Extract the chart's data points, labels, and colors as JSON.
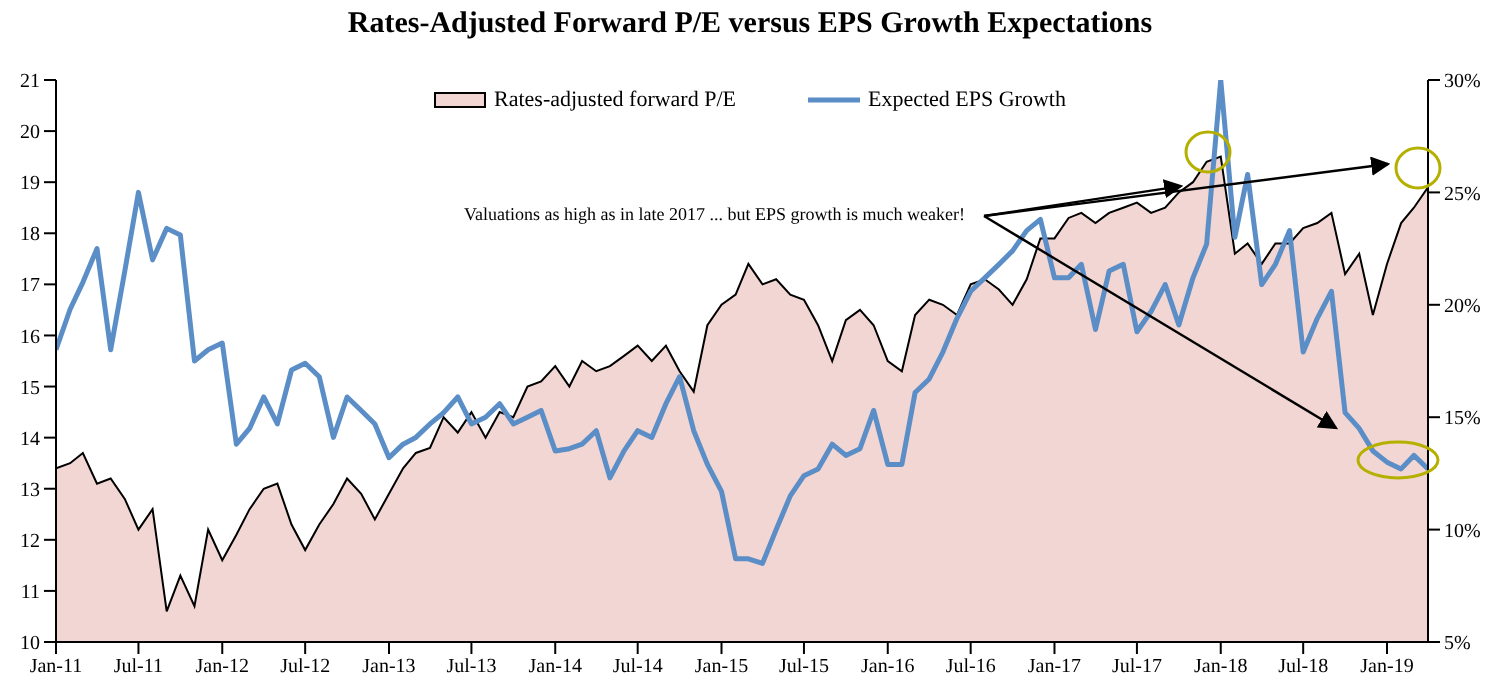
{
  "chart_data": {
    "type": "area",
    "title": "Rates-Adjusted Forward P/E versus EPS Growth Expectations",
    "x": [
      "2011-01",
      "2011-02",
      "2011-03",
      "2011-04",
      "2011-05",
      "2011-06",
      "2011-07",
      "2011-08",
      "2011-09",
      "2011-10",
      "2011-11",
      "2011-12",
      "2012-01",
      "2012-02",
      "2012-03",
      "2012-04",
      "2012-05",
      "2012-06",
      "2012-07",
      "2012-08",
      "2012-09",
      "2012-10",
      "2012-11",
      "2012-12",
      "2013-01",
      "2013-02",
      "2013-03",
      "2013-04",
      "2013-05",
      "2013-06",
      "2013-07",
      "2013-08",
      "2013-09",
      "2013-10",
      "2013-11",
      "2013-12",
      "2014-01",
      "2014-02",
      "2014-03",
      "2014-04",
      "2014-05",
      "2014-06",
      "2014-07",
      "2014-08",
      "2014-09",
      "2014-10",
      "2014-11",
      "2014-12",
      "2015-01",
      "2015-02",
      "2015-03",
      "2015-04",
      "2015-05",
      "2015-06",
      "2015-07",
      "2015-08",
      "2015-09",
      "2015-10",
      "2015-11",
      "2015-12",
      "2016-01",
      "2016-02",
      "2016-03",
      "2016-04",
      "2016-05",
      "2016-06",
      "2016-07",
      "2016-08",
      "2016-09",
      "2016-10",
      "2016-11",
      "2016-12",
      "2017-01",
      "2017-02",
      "2017-03",
      "2017-04",
      "2017-05",
      "2017-06",
      "2017-07",
      "2017-08",
      "2017-09",
      "2017-10",
      "2017-11",
      "2017-12",
      "2018-01",
      "2018-02",
      "2018-03",
      "2018-04",
      "2018-05",
      "2018-06",
      "2018-07",
      "2018-08",
      "2018-09",
      "2018-10",
      "2018-11",
      "2018-12",
      "2019-01",
      "2019-02",
      "2019-03",
      "2019-04"
    ],
    "series": [
      {
        "name": "Rates-adjusted forward P/E",
        "color": "#f2d6d3",
        "values": [
          13.4,
          13.5,
          13.7,
          13.1,
          13.2,
          12.8,
          12.2,
          12.6,
          10.6,
          11.3,
          10.7,
          12.2,
          11.6,
          12.1,
          12.6,
          13.0,
          13.1,
          12.3,
          11.8,
          12.3,
          12.7,
          13.2,
          12.9,
          12.4,
          12.9,
          13.4,
          13.7,
          13.8,
          14.4,
          14.1,
          14.5,
          14.0,
          14.5,
          14.4,
          15.0,
          15.1,
          15.4,
          15.0,
          15.5,
          15.3,
          15.4,
          15.6,
          15.8,
          15.5,
          15.8,
          15.3,
          14.9,
          16.2,
          16.6,
          16.8,
          17.4,
          17.0,
          17.1,
          16.8,
          16.7,
          16.2,
          15.5,
          16.3,
          16.5,
          16.2,
          15.5,
          15.3,
          16.4,
          16.7,
          16.6,
          16.4,
          17.0,
          17.1,
          16.9,
          16.6,
          17.1,
          17.9,
          17.9,
          18.3,
          18.4,
          18.2,
          18.4,
          18.5,
          18.6,
          18.4,
          18.5,
          18.8,
          19.0,
          19.4,
          19.5,
          17.6,
          17.8,
          17.4,
          17.8,
          17.8,
          18.1,
          18.2,
          18.4,
          17.2,
          17.6,
          16.4,
          17.4,
          18.2,
          18.5,
          18.9
        ]
      },
      {
        "name": "Expected EPS Growth",
        "type": "line",
        "axis": "y2",
        "color": "#5b8ec6",
        "values": [
          18.0,
          19.8,
          21.0,
          22.5,
          18.0,
          21.5,
          25.0,
          22.0,
          23.4,
          23.1,
          17.5,
          18.0,
          18.3,
          13.8,
          14.5,
          15.9,
          14.7,
          17.1,
          17.4,
          16.8,
          14.1,
          15.9,
          15.3,
          14.7,
          13.2,
          13.8,
          14.1,
          14.7,
          15.2,
          15.9,
          14.7,
          15.0,
          15.6,
          14.7,
          15.0,
          15.3,
          13.5,
          13.6,
          13.8,
          14.4,
          12.3,
          13.5,
          14.4,
          14.1,
          15.6,
          16.8,
          14.4,
          12.9,
          11.7,
          8.7,
          8.7,
          8.5,
          10.0,
          11.5,
          12.4,
          12.7,
          13.8,
          13.3,
          13.6,
          15.3,
          12.9,
          12.9,
          16.1,
          16.7,
          17.9,
          19.4,
          20.6,
          21.2,
          21.8,
          22.4,
          23.3,
          23.8,
          21.2,
          21.2,
          21.8,
          18.9,
          21.5,
          21.8,
          18.8,
          19.7,
          20.9,
          19.1,
          21.2,
          22.7,
          30.0,
          23.0,
          25.8,
          20.9,
          21.8,
          23.3,
          17.9,
          19.4,
          20.6,
          15.2,
          14.5,
          13.5,
          13.0,
          12.7,
          13.3,
          12.7
        ]
      }
    ],
    "xlim": [
      "2011-01",
      "2019-04"
    ],
    "xticks": [
      {
        "value": "2011-01",
        "label": "Jan-11"
      },
      {
        "value": "2011-07",
        "label": "Jul-11"
      },
      {
        "value": "2012-01",
        "label": "Jan-12"
      },
      {
        "value": "2012-07",
        "label": "Jul-12"
      },
      {
        "value": "2013-01",
        "label": "Jan-13"
      },
      {
        "value": "2013-07",
        "label": "Jul-13"
      },
      {
        "value": "2014-01",
        "label": "Jan-14"
      },
      {
        "value": "2014-07",
        "label": "Jul-14"
      },
      {
        "value": "2015-01",
        "label": "Jan-15"
      },
      {
        "value": "2015-07",
        "label": "Jul-15"
      },
      {
        "value": "2016-01",
        "label": "Jan-16"
      },
      {
        "value": "2016-07",
        "label": "Jul-16"
      },
      {
        "value": "2017-01",
        "label": "Jan-17"
      },
      {
        "value": "2017-07",
        "label": "Jul-17"
      },
      {
        "value": "2018-01",
        "label": "Jan-18"
      },
      {
        "value": "2018-07",
        "label": "Jul-18"
      },
      {
        "value": "2019-01",
        "label": "Jan-19"
      }
    ],
    "ylim": [
      10,
      21
    ],
    "yticks": [
      10,
      11,
      12,
      13,
      14,
      15,
      16,
      17,
      18,
      19,
      20,
      21
    ],
    "y2lim": [
      5,
      30
    ],
    "y2ticks": [
      {
        "value": 5,
        "label": "5%"
      },
      {
        "value": 10,
        "label": "10%"
      },
      {
        "value": 15,
        "label": "15%"
      },
      {
        "value": 20,
        "label": "20%"
      },
      {
        "value": 25,
        "label": "25%"
      },
      {
        "value": 30,
        "label": "30%"
      }
    ],
    "annotations": [
      {
        "text": "Valuations as high as in late 2017 ... but EPS growth is much weaker!",
        "x": "2017-11",
        "y": 19.0
      }
    ],
    "legend": "top"
  }
}
